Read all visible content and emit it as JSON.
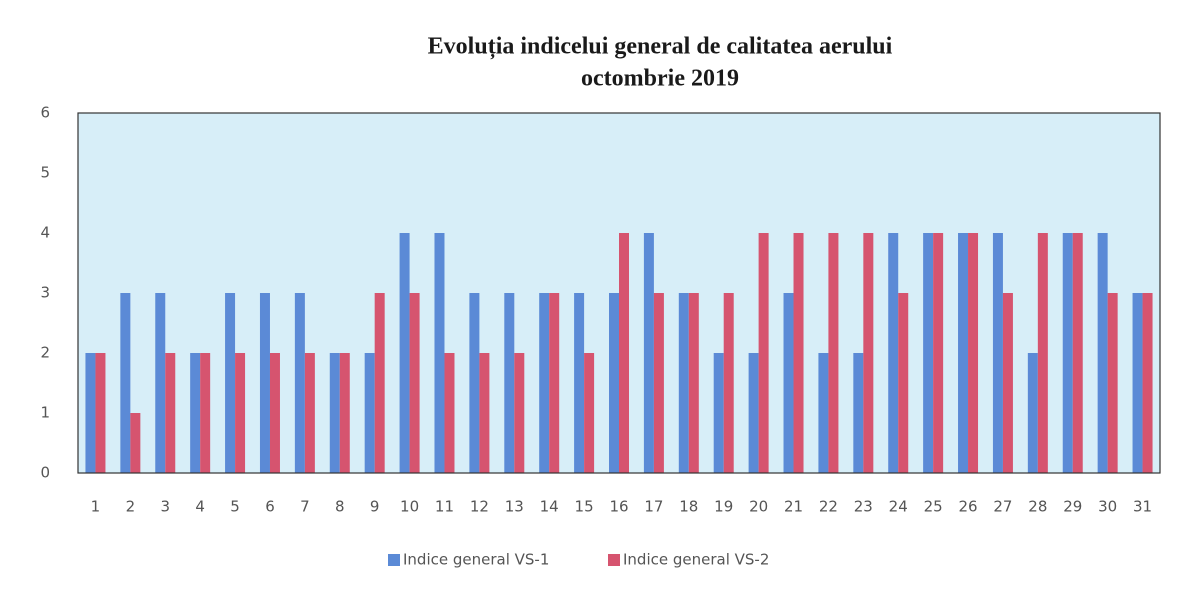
{
  "chart_data": {
    "type": "bar",
    "title": "Evoluția indicelui general de calitatea aerului",
    "subtitle": "octombrie 2019",
    "categories": [
      "1",
      "2",
      "3",
      "4",
      "5",
      "6",
      "7",
      "8",
      "9",
      "10",
      "11",
      "12",
      "13",
      "14",
      "15",
      "16",
      "17",
      "18",
      "19",
      "20",
      "21",
      "22",
      "23",
      "24",
      "25",
      "26",
      "27",
      "28",
      "29",
      "30",
      "31"
    ],
    "series": [
      {
        "name": "Indice general VS-1",
        "color": "#5b8ad6",
        "values": [
          2,
          3,
          3,
          2,
          3,
          3,
          3,
          2,
          2,
          4,
          4,
          3,
          3,
          3,
          3,
          3,
          4,
          3,
          2,
          2,
          3,
          2,
          2,
          4,
          4,
          4,
          4,
          2,
          4,
          4,
          3
        ]
      },
      {
        "name": "Indice general VS-2",
        "color": "#d6546f",
        "values": [
          2,
          1,
          2,
          2,
          2,
          2,
          2,
          2,
          3,
          3,
          2,
          2,
          2,
          3,
          2,
          4,
          3,
          3,
          3,
          4,
          4,
          4,
          4,
          3,
          4,
          4,
          3,
          4,
          4,
          3,
          3
        ]
      }
    ],
    "ylim": [
      0,
      6
    ],
    "yticks": [
      0,
      1,
      2,
      3,
      4,
      5,
      6
    ],
    "grid": false,
    "legend": "bottom"
  }
}
